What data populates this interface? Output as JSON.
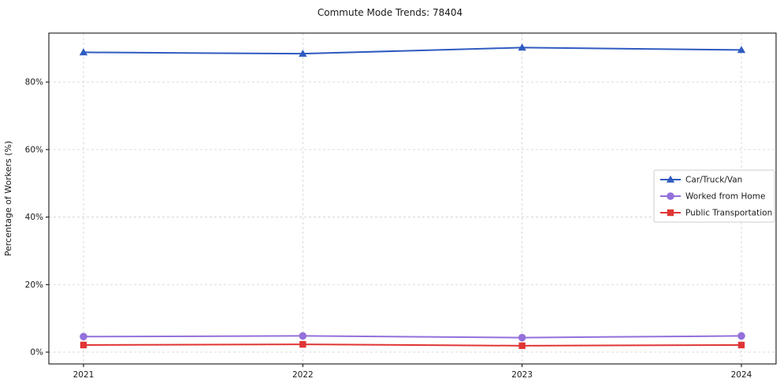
{
  "chart_data": {
    "type": "line",
    "title": "Commute Mode Trends: 78404",
    "xlabel": "",
    "ylabel": "Percentage of Workers (%)",
    "x": [
      "2021",
      "2022",
      "2023",
      "2024"
    ],
    "series": [
      {
        "name": "Car/Truck/Van",
        "values": [
          88.8,
          88.4,
          90.2,
          89.5
        ],
        "color": "#2f5bc0",
        "marker": "triangle"
      },
      {
        "name": "Worked from Home",
        "values": [
          4.6,
          4.8,
          4.3,
          4.8
        ],
        "color": "#9370DB",
        "marker": "circle"
      },
      {
        "name": "Public Transportation",
        "values": [
          2.1,
          2.3,
          1.9,
          2.1
        ],
        "color": "#e03535",
        "marker": "square"
      }
    ],
    "ylim": [
      -3.5,
      94.5
    ],
    "yticks": [
      0,
      20,
      40,
      60,
      80
    ],
    "ytick_labels": [
      "0%",
      "20%",
      "40%",
      "60%",
      "80%"
    ],
    "grid": true,
    "grid_style": "dashed",
    "grid_color": "#cfcfcf",
    "legend_position": "right-center",
    "axis_color": "#000000",
    "text_color": "#1a1a1a"
  }
}
